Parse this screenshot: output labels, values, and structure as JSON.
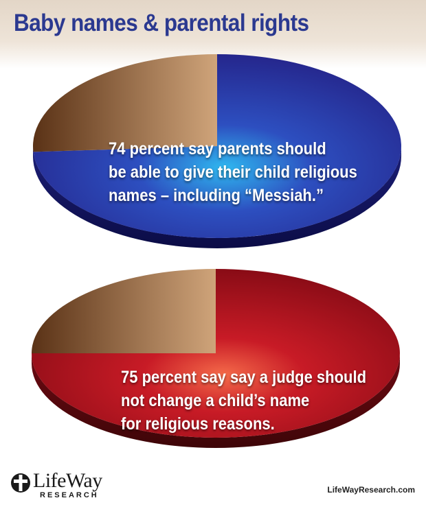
{
  "header": {
    "title": "Baby names & parental rights"
  },
  "chart_data": [
    {
      "type": "pie",
      "slices": [
        {
          "label": "74 percent say parents should be able to give their child religious names – including “Messiah.”",
          "value": 74,
          "color": "#2c3aa0"
        },
        {
          "label": "",
          "value": 26,
          "color": "#a87648"
        }
      ],
      "label_lines": [
        "74 percent say parents should",
        "be able to give their child religious",
        "names – including “Messiah.”"
      ]
    },
    {
      "type": "pie",
      "slices": [
        {
          "label": "75 percent say say a judge should not change a child’s name for religious reasons.",
          "value": 75,
          "color": "#a0121e"
        },
        {
          "label": "",
          "value": 25,
          "color": "#a87648"
        }
      ],
      "label_lines": [
        "75 percent say say a judge should",
        "not change a child’s name",
        "for religious reasons."
      ]
    }
  ],
  "footer": {
    "logo_name": "LifeWay",
    "logo_sub": "RESEARCH",
    "url": "LifeWayResearch.com"
  }
}
